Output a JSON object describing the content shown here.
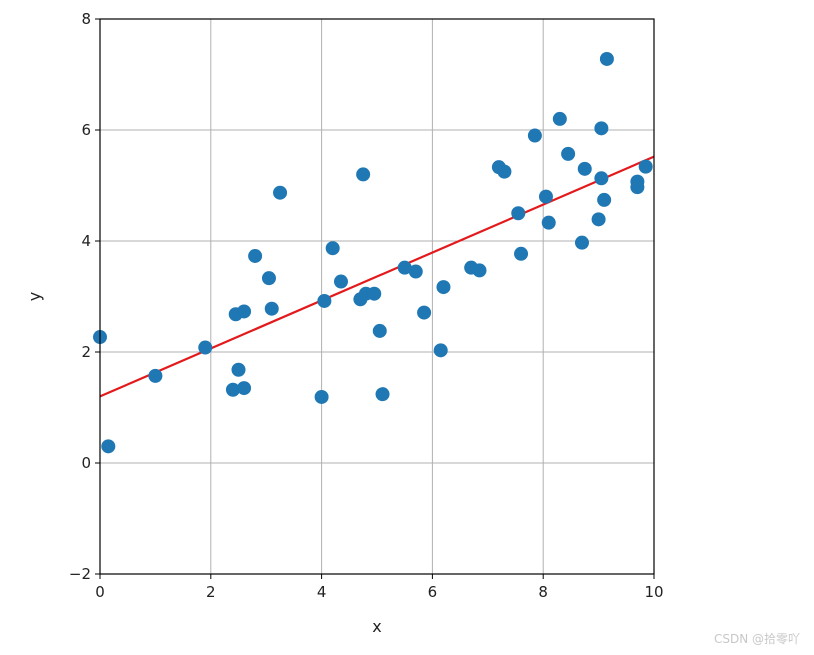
{
  "chart_data": {
    "type": "scatter",
    "title": "",
    "xlabel": "x",
    "ylabel": "y",
    "xlim": [
      0,
      10
    ],
    "ylim": [
      -2,
      8
    ],
    "xticks": [
      "0",
      "2",
      "4",
      "6",
      "8",
      "10"
    ],
    "yticks": [
      "−2",
      "0",
      "2",
      "4",
      "6",
      "8"
    ],
    "grid": true,
    "points": [
      [
        0.0,
        2.27
      ],
      [
        0.15,
        0.3
      ],
      [
        1.0,
        1.57
      ],
      [
        1.9,
        2.08
      ],
      [
        2.4,
        1.32
      ],
      [
        2.45,
        2.68
      ],
      [
        2.5,
        1.68
      ],
      [
        2.6,
        2.73
      ],
      [
        2.6,
        1.35
      ],
      [
        2.8,
        3.73
      ],
      [
        3.05,
        3.33
      ],
      [
        3.1,
        2.78
      ],
      [
        3.25,
        4.87
      ],
      [
        4.0,
        1.19
      ],
      [
        4.05,
        2.92
      ],
      [
        4.2,
        3.87
      ],
      [
        4.35,
        3.27
      ],
      [
        4.7,
        2.95
      ],
      [
        4.75,
        5.2
      ],
      [
        4.8,
        3.05
      ],
      [
        4.95,
        3.05
      ],
      [
        5.05,
        2.38
      ],
      [
        5.1,
        1.24
      ],
      [
        5.5,
        3.52
      ],
      [
        5.7,
        3.45
      ],
      [
        5.85,
        2.71
      ],
      [
        6.15,
        2.03
      ],
      [
        6.2,
        3.17
      ],
      [
        6.7,
        3.52
      ],
      [
        6.85,
        3.47
      ],
      [
        7.2,
        5.33
      ],
      [
        7.3,
        5.25
      ],
      [
        7.55,
        4.5
      ],
      [
        7.6,
        3.77
      ],
      [
        7.85,
        5.9
      ],
      [
        8.05,
        4.8
      ],
      [
        8.1,
        4.33
      ],
      [
        8.3,
        6.2
      ],
      [
        8.45,
        5.57
      ],
      [
        8.7,
        3.97
      ],
      [
        8.75,
        5.3
      ],
      [
        9.0,
        4.39
      ],
      [
        9.05,
        5.13
      ],
      [
        9.05,
        6.03
      ],
      [
        9.1,
        4.74
      ],
      [
        9.15,
        7.28
      ],
      [
        9.7,
        5.07
      ],
      [
        9.7,
        4.97
      ],
      [
        9.85,
        5.34
      ]
    ],
    "fit_line": {
      "x": [
        0,
        10
      ],
      "y": [
        1.2,
        5.52
      ]
    },
    "colors": {
      "points": "#1f77b4",
      "fit_line": "#e31a1c",
      "grid": "#b0b0b0",
      "axes": "#000000"
    }
  },
  "watermark": "CSDN @拾零吖"
}
